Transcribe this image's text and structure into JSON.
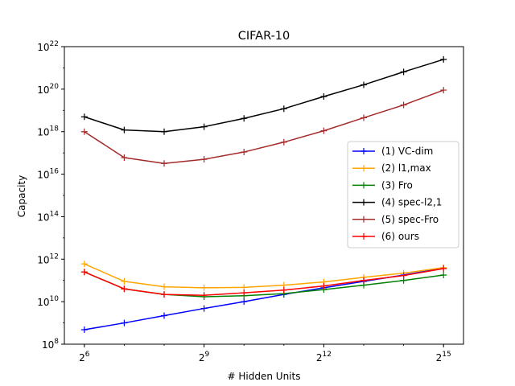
{
  "chart_data": {
    "type": "line",
    "title": "CIFAR-10",
    "xlabel": "# Hidden Units",
    "ylabel": "Capacity",
    "x_scale": "log2",
    "y_scale": "log10",
    "xlim": [
      45.25,
      46340.95
    ],
    "ylim": [
      100000000.0,
      1e+22
    ],
    "x": [
      64,
      128,
      256,
      512,
      1024,
      2048,
      4096,
      8192,
      16384,
      32768
    ],
    "x_ticks": [
      {
        "value": 64,
        "base": "2",
        "exp": "6"
      },
      {
        "value": 512,
        "base": "2",
        "exp": "9"
      },
      {
        "value": 4096,
        "base": "2",
        "exp": "12"
      },
      {
        "value": 32768,
        "base": "2",
        "exp": "15"
      }
    ],
    "y_ticks": [
      {
        "value": 100000000.0,
        "base": "10",
        "exp": "8"
      },
      {
        "value": 10000000000.0,
        "base": "10",
        "exp": "10"
      },
      {
        "value": 1000000000000.0,
        "base": "10",
        "exp": "12"
      },
      {
        "value": 100000000000000.0,
        "base": "10",
        "exp": "14"
      },
      {
        "value": 1e+16,
        "base": "10",
        "exp": "16"
      },
      {
        "value": 1e+18,
        "base": "10",
        "exp": "18"
      },
      {
        "value": 1e+20,
        "base": "10",
        "exp": "20"
      },
      {
        "value": 1e+22,
        "base": "10",
        "exp": "22"
      }
    ],
    "grid": false,
    "legend_position": "center-right",
    "series": [
      {
        "name": "(1) VC-dim",
        "color": "#0000ff",
        "values": [
          480000000.0,
          1000000000.0,
          2200000000.0,
          4800000000.0,
          10000000000.0,
          22000000000.0,
          45000000000.0,
          90000000000.0,
          180000000000.0,
          380000000000.0
        ]
      },
      {
        "name": "(2) l1,max",
        "color": "#ffa500",
        "values": [
          600000000000.0,
          90000000000.0,
          50000000000.0,
          45000000000.0,
          47000000000.0,
          60000000000.0,
          85000000000.0,
          140000000000.0,
          220000000000.0,
          400000000000.0
        ]
      },
      {
        "name": "(3) Fro",
        "color": "#008000",
        "values": [
          250000000000.0,
          40000000000.0,
          22000000000.0,
          17000000000.0,
          19000000000.0,
          24000000000.0,
          37000000000.0,
          60000000000.0,
          100000000000.0,
          180000000000.0
        ]
      },
      {
        "name": "(4) spec-l2,1",
        "color": "#000000",
        "values": [
          5e+18,
          1.2e+18,
          1e+18,
          1.7e+18,
          4.2e+18,
          1.2e+19,
          4.5e+19,
          1.6e+20,
          6.5e+20,
          2.5e+21
        ]
      },
      {
        "name": "(5) spec-Fro",
        "color": "#a52a2a",
        "values": [
          1e+18,
          6e+16,
          3.2e+16,
          5e+16,
          1.1e+17,
          3.2e+17,
          1.1e+18,
          4.5e+18,
          1.8e+19,
          9e+19
        ]
      },
      {
        "name": "(6) ours",
        "color": "#ff0000",
        "values": [
          250000000000.0,
          40000000000.0,
          22000000000.0,
          20000000000.0,
          26000000000.0,
          35000000000.0,
          55000000000.0,
          100000000000.0,
          170000000000.0,
          360000000000.0
        ]
      }
    ]
  }
}
